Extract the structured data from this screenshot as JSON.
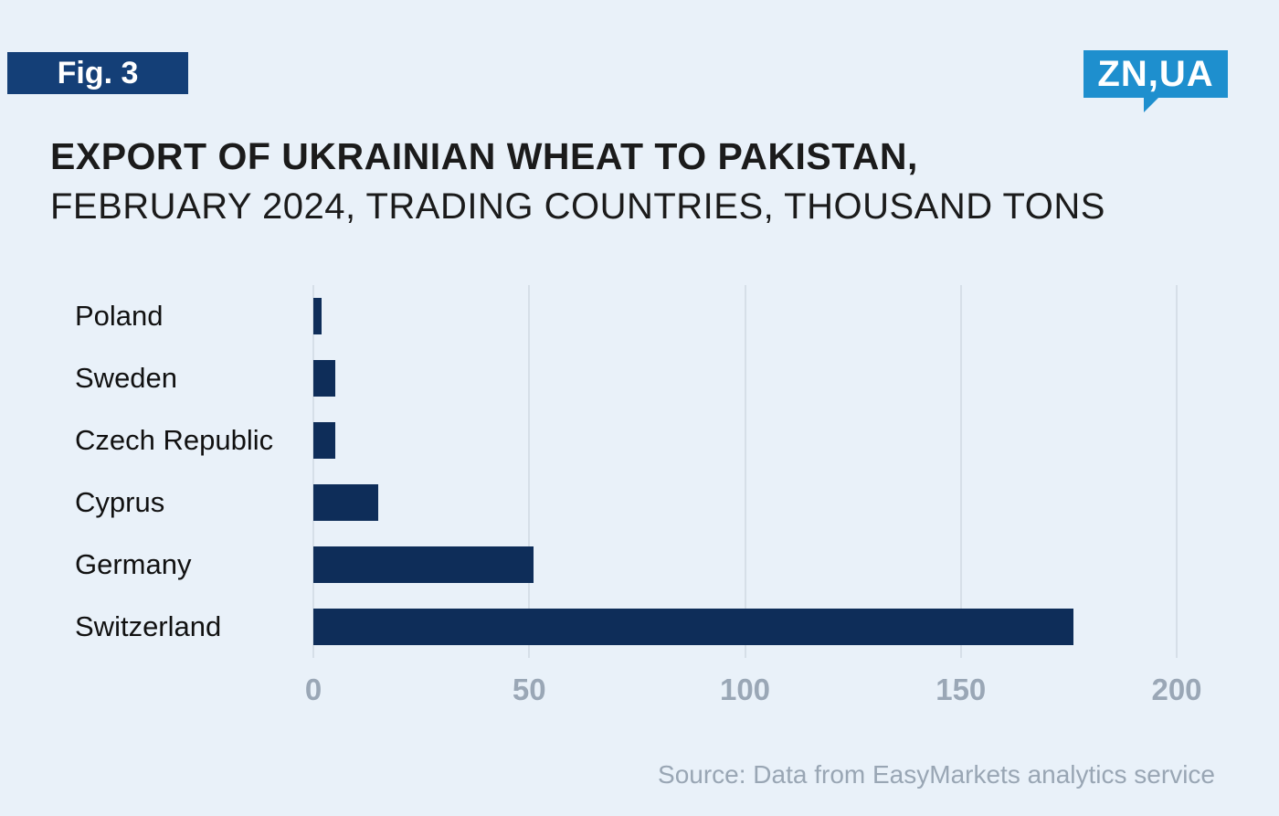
{
  "figure_label": "Fig. 3",
  "logo": {
    "text": "ZN,UA"
  },
  "title": {
    "line1": "EXPORT OF UKRAINIAN WHEAT TO PAKISTAN,",
    "line2": "FEBRUARY 2024, TRADING COUNTRIES, THOUSAND TONS"
  },
  "source": "Source: Data from EasyMarkets analytics service",
  "colors": {
    "background": "#e9f1f9",
    "bar": "#0e2d59",
    "figure_badge": "#143f77",
    "logo_background": "#1e8fce",
    "gridline": "#d6dfe8",
    "tick_label": "#9aa7b6"
  },
  "chart_data": {
    "type": "bar",
    "orientation": "horizontal",
    "title": "EXPORT OF UKRAINIAN WHEAT TO PAKISTAN, FEBRUARY 2024, TRADING COUNTRIES, THOUSAND TONS",
    "unit": "thousand tons",
    "categories": [
      "Poland",
      "Sweden",
      "Czech Republic",
      "Cyprus",
      "Germany",
      "Switzerland"
    ],
    "values": [
      2,
      5,
      5,
      15,
      51,
      176
    ],
    "xlim": [
      0,
      200
    ],
    "x_ticks": [
      0,
      50,
      100,
      150,
      200
    ],
    "grid": true,
    "legend": false
  }
}
